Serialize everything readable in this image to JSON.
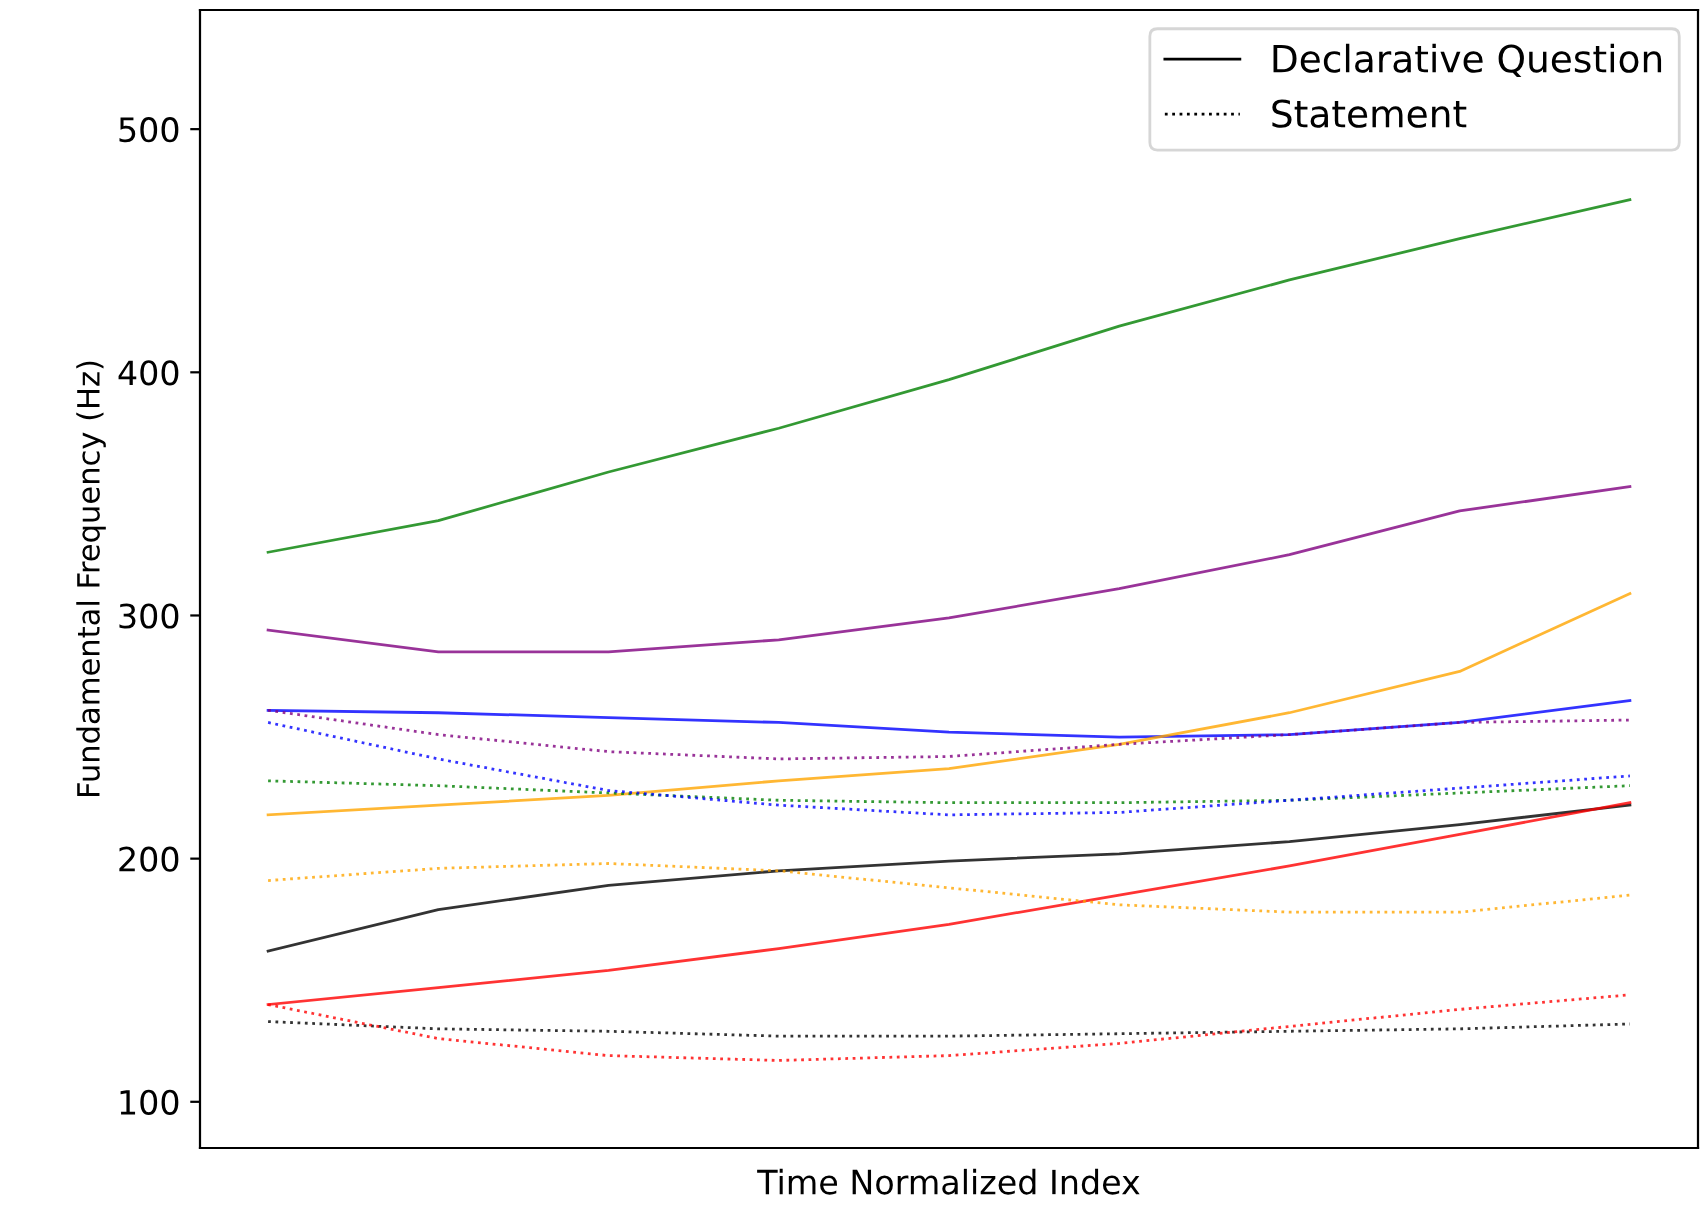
{
  "chart_data": {
    "type": "line",
    "xlabel": "Time Normalized Index",
    "ylabel": "Fundamental Frequency (Hz)",
    "categories": [
      null,
      null,
      null,
      null,
      null,
      null,
      null,
      null,
      null
    ],
    "ylim": [
      81,
      549
    ],
    "yticks": [
      100,
      200,
      300,
      400,
      500
    ],
    "grid": false,
    "legend": "top right",
    "marker": "none",
    "series": [
      {
        "name": "Declarative Question",
        "color": "#000000",
        "line_style": "solid",
        "values": [
          162,
          179,
          189,
          195,
          199,
          202,
          207,
          214,
          222
        ]
      },
      {
        "name": "Statement",
        "color": "#000000",
        "line_style": "dotted",
        "values": [
          133,
          130,
          129,
          127,
          127,
          128,
          129,
          130,
          132
        ]
      },
      {
        "color": "#008000",
        "line_style": "solid",
        "values": [
          326,
          339,
          359,
          377,
          397,
          419,
          438,
          455,
          471
        ]
      },
      {
        "color": "#800080",
        "line_style": "solid",
        "values": [
          294,
          285,
          285,
          290,
          299,
          311,
          325,
          343,
          353
        ]
      },
      {
        "color": "#0000ff",
        "line_style": "solid",
        "values": [
          261,
          260,
          258,
          256,
          252,
          250,
          251,
          256,
          265
        ]
      },
      {
        "color": "#ffa500",
        "line_style": "solid",
        "values": [
          218,
          222,
          226,
          232,
          237,
          247,
          260,
          277,
          309
        ]
      },
      {
        "color": "#ff0000",
        "line_style": "solid",
        "values": [
          140,
          147,
          154,
          163,
          173,
          185,
          197,
          210,
          223
        ]
      },
      {
        "color": "#008000",
        "line_style": "dotted",
        "values": [
          232,
          230,
          227,
          224,
          223,
          223,
          224,
          227,
          230
        ]
      },
      {
        "color": "#0000ff",
        "line_style": "dotted",
        "values": [
          256,
          241,
          228,
          222,
          218,
          219,
          224,
          229,
          234
        ]
      },
      {
        "color": "#800080",
        "line_style": "dotted",
        "values": [
          261,
          251,
          244,
          241,
          242,
          247,
          251,
          256,
          257
        ]
      },
      {
        "color": "#ffa500",
        "line_style": "dotted",
        "values": [
          191,
          196,
          198,
          195,
          188,
          181,
          178,
          178,
          185
        ]
      },
      {
        "color": "#ff0000",
        "line_style": "dotted",
        "values": [
          140,
          126,
          119,
          117,
          119,
          124,
          131,
          138,
          144
        ]
      }
    ]
  }
}
